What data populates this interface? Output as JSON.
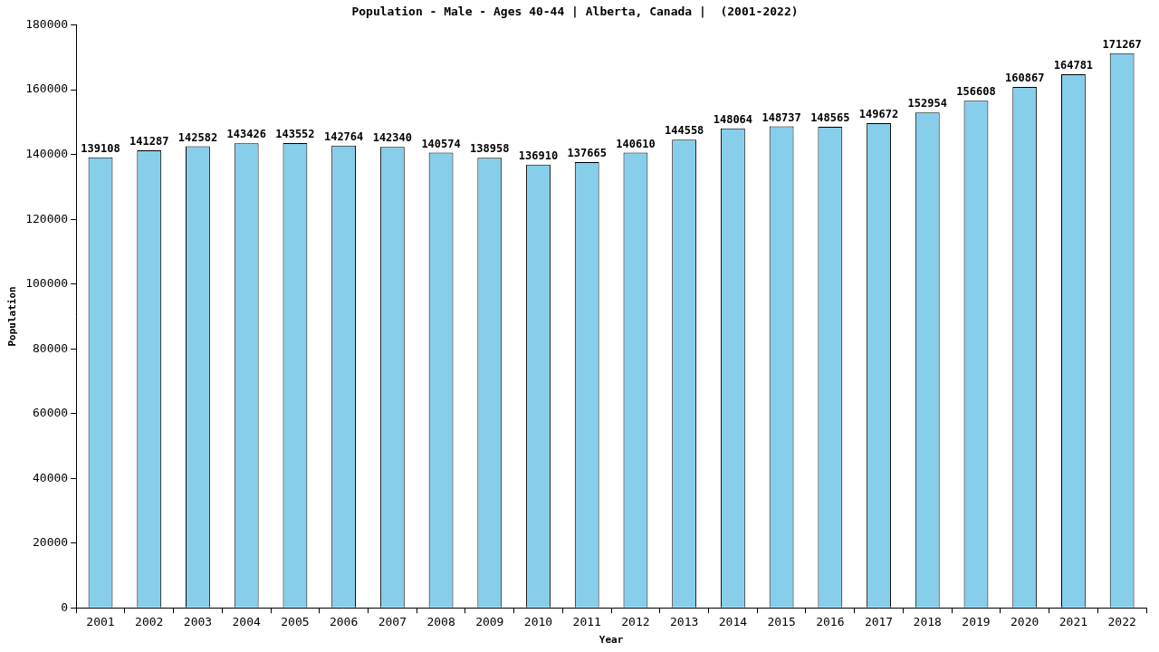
{
  "chart_data": {
    "type": "bar",
    "title": "Population - Male - Ages 40-44 | Alberta, Canada |  (2001-2022)",
    "x_label": "Year",
    "y_label": "Population",
    "categories": [
      "2001",
      "2002",
      "2003",
      "2004",
      "2005",
      "2006",
      "2007",
      "2008",
      "2009",
      "2010",
      "2011",
      "2012",
      "2013",
      "2014",
      "2015",
      "2016",
      "2017",
      "2018",
      "2019",
      "2020",
      "2021",
      "2022"
    ],
    "values": [
      139108,
      141287,
      142582,
      143426,
      143552,
      142764,
      142340,
      140574,
      138958,
      136910,
      137665,
      140610,
      144558,
      148064,
      148737,
      148565,
      149672,
      152954,
      156608,
      160867,
      164781,
      171267
    ],
    "color": "#87ceeb",
    "ylim": [
      0,
      180000
    ],
    "yticks": [
      0,
      20000,
      40000,
      60000,
      80000,
      100000,
      120000,
      140000,
      160000,
      180000
    ],
    "grid": false,
    "data_labels": true
  }
}
